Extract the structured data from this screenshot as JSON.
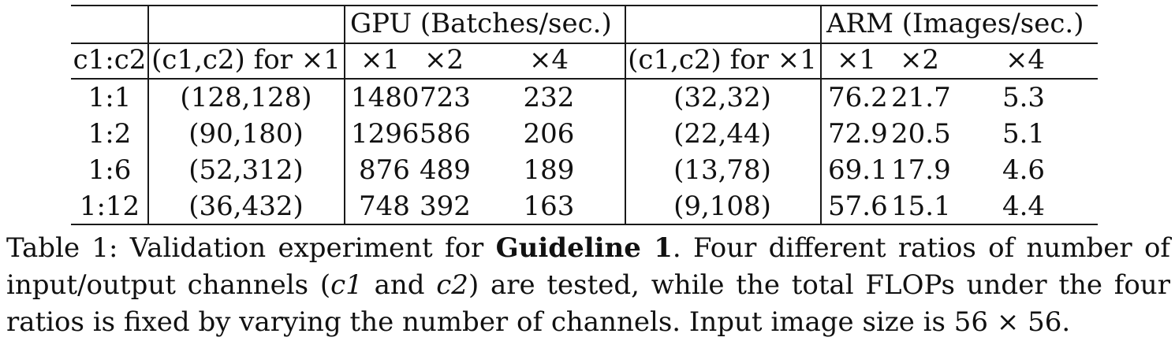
{
  "table": {
    "header1": {
      "gpu_group": "GPU (Batches/sec.)",
      "arm_group": "ARM (Images/sec.)"
    },
    "header2": {
      "ratio": "c1:c2",
      "gpu_channels": "(c1,c2) for ×1",
      "gpu_x1": "×1",
      "gpu_x2": "×2",
      "gpu_x4": "×4",
      "arm_channels": "(c1,c2) for ×1",
      "arm_x1": "×1",
      "arm_x2": "×2",
      "arm_x4": "×4"
    },
    "rows": [
      {
        "ratio": "1:1",
        "gpu_ch": "(128,128)",
        "gpu_x1": "1480",
        "gpu_x2": "723",
        "gpu_x4": "232",
        "arm_ch": "(32,32)",
        "arm_x1": "76.2",
        "arm_x2": "21.7",
        "arm_x4": "5.3"
      },
      {
        "ratio": "1:2",
        "gpu_ch": "(90,180)",
        "gpu_x1": "1296",
        "gpu_x2": "586",
        "gpu_x4": "206",
        "arm_ch": "(22,44)",
        "arm_x1": "72.9",
        "arm_x2": "20.5",
        "arm_x4": "5.1"
      },
      {
        "ratio": "1:6",
        "gpu_ch": "(52,312)",
        "gpu_x1": "876",
        "gpu_x2": "489",
        "gpu_x4": "189",
        "arm_ch": "(13,78)",
        "arm_x1": "69.1",
        "arm_x2": "17.9",
        "arm_x4": "4.6"
      },
      {
        "ratio": "1:12",
        "gpu_ch": "(36,432)",
        "gpu_x1": "748",
        "gpu_x2": "392",
        "gpu_x4": "163",
        "arm_ch": "(9,108)",
        "arm_x1": "57.6",
        "arm_x2": "15.1",
        "arm_x4": "4.4"
      }
    ]
  },
  "caption": {
    "prefix": "Table 1: Validation experiment for ",
    "bold": "Guideline 1",
    "mid1": ". Four different ratios of number of input/output channels (",
    "c1": "c1",
    "and": " and ",
    "c2": "c2",
    "rest": ") are tested, while the total FLOPs under the four ratios is fixed by varying the number of channels. Input image size is 56 × 56."
  }
}
